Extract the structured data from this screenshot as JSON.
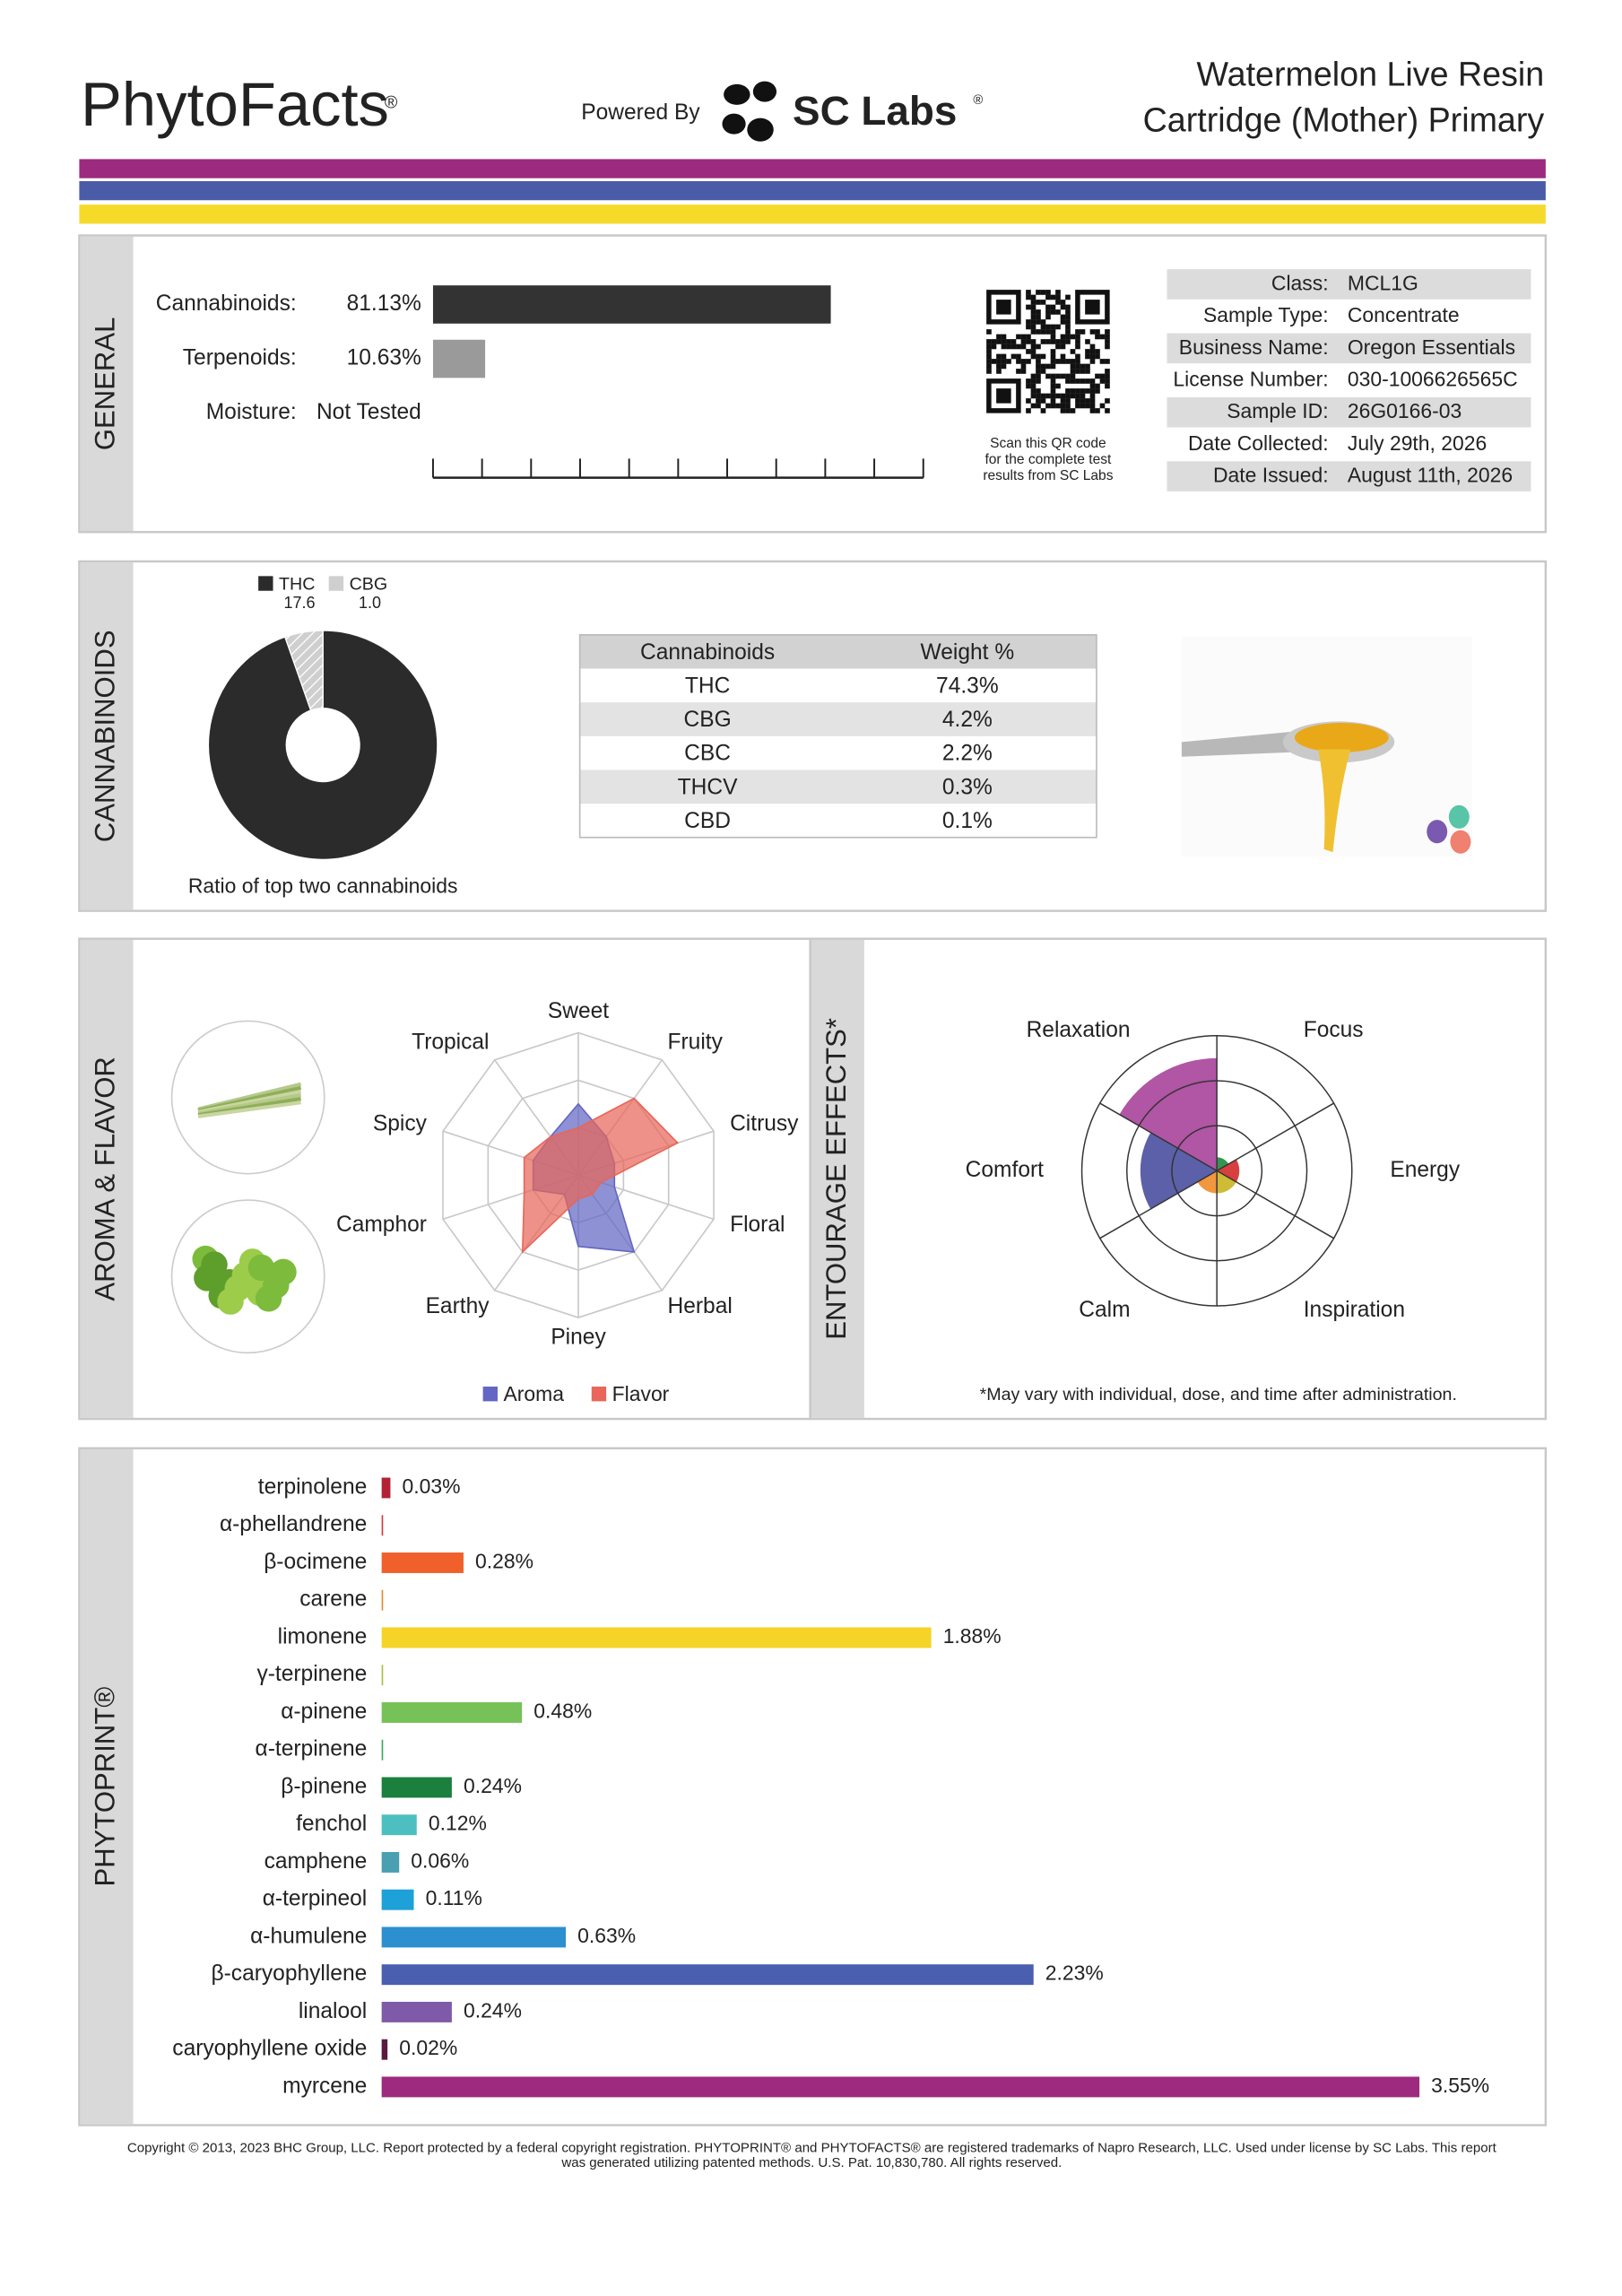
{
  "header": {
    "brand": "PhytoFacts",
    "brand_mark": "®",
    "powered_by": "Powered By",
    "lab": "SC Labs",
    "lab_mark": "®",
    "title": [
      "Watermelon Live Resin",
      "Cartridge (Mother) Primary"
    ]
  },
  "sections": {
    "general": "GENERAL",
    "cannabinoids": "CANNABINOIDS",
    "aroma": "AROMA & FLAVOR",
    "entourage": "ENTOURAGE EFFECTS*",
    "phytoprint": "PHYTOPRINT®"
  },
  "qr_caption": [
    "Scan this QR code",
    "for the complete test",
    "results from SC Labs"
  ],
  "sample_info": {
    "rows": [
      [
        "Class:",
        "MCL1G"
      ],
      [
        "Sample Type:",
        "Concentrate"
      ],
      [
        "Business Name:",
        "Oregon Essentials"
      ],
      [
        "License Number:",
        "030-1006626565C"
      ],
      [
        "Sample ID:",
        "26G0166-03"
      ],
      [
        "Date Collected:",
        "July 29th, 2026"
      ],
      [
        "Date Issued:",
        "August 11th, 2026"
      ]
    ]
  },
  "cannabinoid_table": {
    "columns": [
      "Cannabinoids",
      "Weight %"
    ],
    "rows": [
      [
        "THC",
        "74.3%"
      ],
      [
        "CBG",
        "4.2%"
      ],
      [
        "CBC",
        "2.2%"
      ],
      [
        "THCV",
        "0.3%"
      ],
      [
        "CBD",
        "0.1%"
      ]
    ]
  },
  "chart_data": [
    {
      "type": "bar",
      "orientation": "horizontal",
      "categories": [
        "Cannabinoids:",
        "Terpenoids:",
        "Moisture:"
      ],
      "values": [
        81.13,
        10.63,
        null
      ],
      "value_labels": [
        "81.13%",
        "10.63%",
        "Not Tested"
      ],
      "colors": [
        "#333333",
        "#9a9a9a",
        "#9a9a9a"
      ],
      "xlim": [
        0,
        100
      ]
    },
    {
      "type": "pie",
      "donut": true,
      "categories": [
        "THC",
        "CBG"
      ],
      "values": [
        17.6,
        1.0
      ],
      "value_labels": [
        "17.6",
        "1.0"
      ],
      "colors": [
        "#2b2b2b",
        "#cfcfcf"
      ],
      "caption": "Ratio of top two cannabinoids"
    },
    {
      "type": "radar",
      "categories": [
        "Sweet",
        "Fruity",
        "Citrusy",
        "Floral",
        "Herbal",
        "Piney",
        "Earthy",
        "Camphor",
        "Spicy",
        "Tropical"
      ],
      "series": [
        {
          "name": "Aroma",
          "color": "#6366c4",
          "values": [
            1.5,
            1.0,
            0.8,
            0.8,
            2.0,
            1.5,
            0.5,
            1.0,
            1.0,
            1.0
          ]
        },
        {
          "name": "Flavor",
          "color": "#e8665a",
          "values": [
            1.0,
            2.0,
            2.2,
            0.5,
            0.5,
            0.5,
            2.0,
            1.2,
            1.2,
            1.0
          ]
        }
      ],
      "rlim": [
        0,
        3
      ],
      "rticks": [
        1,
        2,
        3
      ]
    },
    {
      "type": "polar-area",
      "categories": [
        "Focus",
        "Energy",
        "Inspiration",
        "Calm",
        "Comfort",
        "Relaxation"
      ],
      "values": [
        0.3,
        0.5,
        0.5,
        0.5,
        1.7,
        2.5
      ],
      "colors": [
        "#1e8a3c",
        "#d42a2a",
        "#c9b420",
        "#f08c2a",
        "#4a4fa0",
        "#a8439b"
      ],
      "rlim": [
        0,
        3
      ],
      "rticks": [
        1,
        2,
        3
      ],
      "note": "*May vary with individual, dose, and time after administration."
    },
    {
      "type": "bar",
      "orientation": "horizontal",
      "categories": [
        "terpinolene",
        "α-phellandrene",
        "β-ocimene",
        "carene",
        "limonene",
        "γ-terpinene",
        "α-pinene",
        "α-terpinene",
        "β-pinene",
        "fenchol",
        "camphene",
        "α-terpineol",
        "α-humulene",
        "β-caryophyllene",
        "linalool",
        "caryophyllene oxide",
        "myrcene"
      ],
      "values": [
        0.03,
        0.005,
        0.28,
        0.005,
        1.88,
        0.005,
        0.48,
        0.005,
        0.24,
        0.12,
        0.06,
        0.11,
        0.63,
        2.23,
        0.24,
        0.02,
        3.55
      ],
      "value_labels": [
        "0.03%",
        null,
        "0.28%",
        null,
        "1.88%",
        null,
        "0.48%",
        null,
        "0.24%",
        "0.12%",
        "0.06%",
        "0.11%",
        "0.63%",
        "2.23%",
        "0.24%",
        "0.02%",
        "3.55%"
      ],
      "colors": [
        "#b22234",
        "#d43a3a",
        "#f0602a",
        "#e08a30",
        "#f5d327",
        "#a8c040",
        "#76c158",
        "#3aa860",
        "#1b7f3d",
        "#4dbfc0",
        "#4aa0b0",
        "#1ea0d8",
        "#2c8fd0",
        "#4a5fb0",
        "#7e5aa8",
        "#5a1a40",
        "#9e2a80"
      ],
      "label_colors": [
        "#b22234",
        "#d43a3a",
        "#e0502a",
        "#d07a30",
        "#b89c10",
        "#7f9a30",
        "#4f9a38",
        "#2a9050",
        "#1b7f3d",
        "#2a9aa0",
        "#3a8a9a",
        "#1a8ac0",
        "#2a7cc0",
        "#3a4fa0",
        "#6e4a98",
        "#4a1030",
        "#8e1a70"
      ],
      "xlim": [
        0,
        3.55
      ]
    }
  ],
  "footer": [
    "Copyright © 2013, 2023 BHC Group, LLC. Report protected by a federal copyright registration. PHYTOPRINT® and PHYTOFACTS® are registered trademarks of Napro Research, LLC. Used under license by SC Labs. This report",
    "was generated utilizing patented methods. U.S. Pat. 10,830,780. All rights reserved."
  ]
}
